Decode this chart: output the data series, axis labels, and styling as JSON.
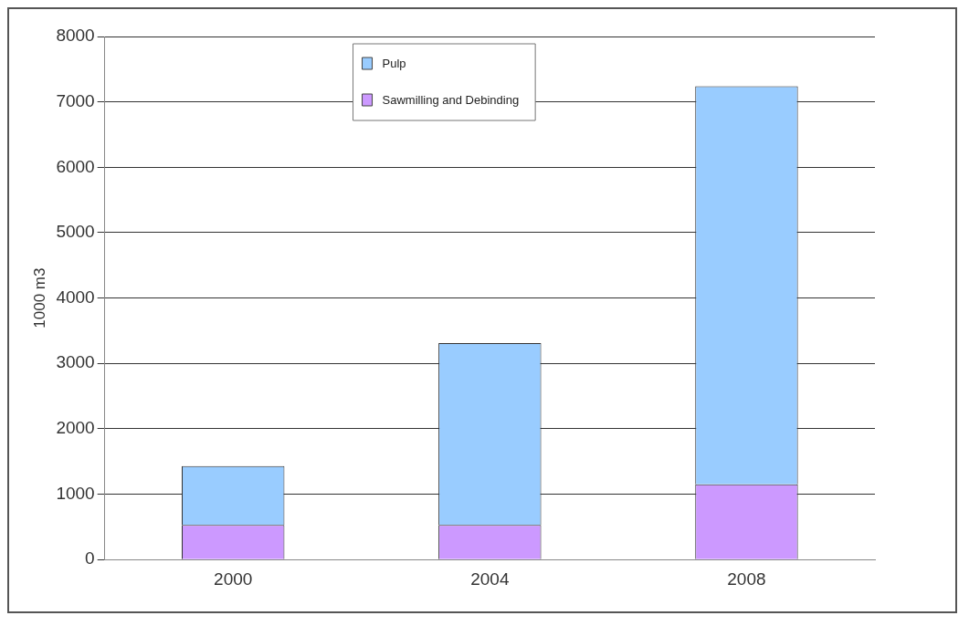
{
  "chart_data": {
    "type": "bar",
    "stacked": true,
    "ylabel": "1000 m3",
    "categories": [
      "2000",
      "2004",
      "2008"
    ],
    "series": [
      {
        "name": "Sawmilling and Debinding",
        "color": "#cc99ff",
        "values": [
          530,
          530,
          1150
        ]
      },
      {
        "name": "Pulp",
        "color": "#99ccff",
        "values": [
          900,
          2780,
          6090
        ]
      }
    ],
    "ylim": [
      0,
      8000
    ],
    "yticks": [
      0,
      1000,
      2000,
      3000,
      4000,
      5000,
      6000,
      7000,
      8000
    ],
    "grid": "y",
    "legend": "top"
  }
}
